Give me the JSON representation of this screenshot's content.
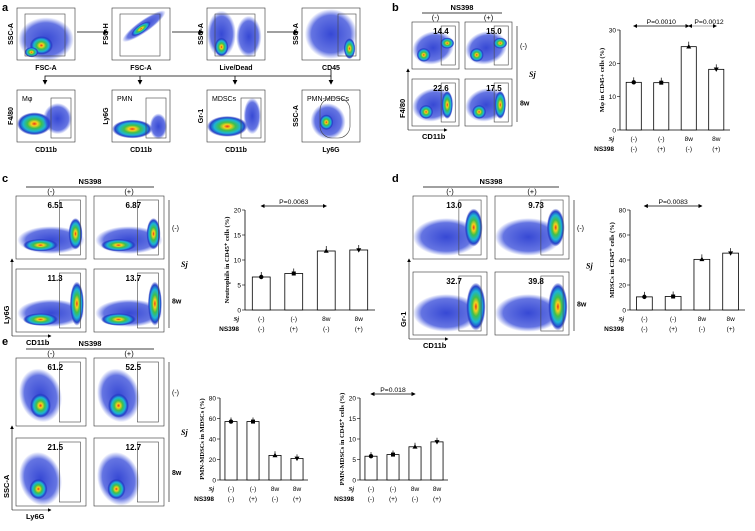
{
  "panel_labels": [
    "a",
    "b",
    "c",
    "d",
    "e"
  ],
  "panel_a": {
    "row1": [
      {
        "x": "FSC-A",
        "y": "SSC-A"
      },
      {
        "x": "FSC-A",
        "y": "FSC-H"
      },
      {
        "x": "Live/Dead",
        "y": "SSC-A"
      },
      {
        "x": "CD45",
        "y": "SSC-A"
      }
    ],
    "row2": [
      {
        "x": "CD11b",
        "y": "F4/80",
        "gate": "Mφ"
      },
      {
        "x": "CD11b",
        "y": "Ly6G",
        "gate": "PMN"
      },
      {
        "x": "CD11b",
        "y": "Gr-1",
        "gate": "MDSCs"
      },
      {
        "x": "Ly6G",
        "y": "SSC-A",
        "gate": "PMN-MDSCs"
      }
    ],
    "gate_color": "#e0561b"
  },
  "treatment": "NS398",
  "col_neg": "(-)",
  "col_pos": "(+)",
  "row_neg": "(-)",
  "row_8w": "8w",
  "group_label": "Sj",
  "table_rows": {
    "sj": "Sj",
    "ns": "NS398"
  },
  "table_cols": [
    {
      "sj": "(-)",
      "ns": "(-)"
    },
    {
      "sj": "(-)",
      "ns": "(+)"
    },
    {
      "sj": "8w",
      "ns": "(-)"
    },
    {
      "sj": "8w",
      "ns": "(+)"
    }
  ],
  "panel_b": {
    "percents": [
      "14.4",
      "15.0",
      "22.6",
      "17.5"
    ],
    "x": "CD11b",
    "y": "F4/80",
    "ylabel": "Mφ in CD45+ cells (%)",
    "pvalues": [
      "P=0.0010",
      "P=0.0012"
    ]
  },
  "panel_c": {
    "percents": [
      "6.51",
      "6.87",
      "11.3",
      "13.7"
    ],
    "x": "CD11b",
    "y": "Ly6G",
    "ylabel": "Neutrophils in CD45⁺ cells (%)",
    "pvalue": "P=0.0063"
  },
  "panel_d": {
    "percents": [
      "13.0",
      "9.73",
      "32.7",
      "39.8"
    ],
    "x": "CD11b",
    "y": "Gr-1",
    "ylabel": "MDSCs in CD45⁺ cells (%)",
    "pvalue": "P=0.0083"
  },
  "panel_e": {
    "percents": [
      "61.2",
      "52.5",
      "21.5",
      "12.7"
    ],
    "x": "Ly6G",
    "y": "SSC-A",
    "ylabel1": "PMN-MDSCs in MDSCs (%)",
    "ylabel2": "PMN-MDSCs in CD45⁺ cells (%)",
    "pvalue": "P=0.018"
  },
  "chart_data": [
    {
      "type": "bar",
      "title": "",
      "ylabel": "Mφ in CD45+ cells (%)",
      "categories": [
        "(-)/(-)",
        "(-)/(+)",
        "8w/(-)",
        "8w/(+)"
      ],
      "values": [
        14.3,
        14.2,
        25.0,
        18.2
      ],
      "ylim": [
        0,
        30
      ],
      "yticks": [
        0,
        10,
        20,
        30
      ],
      "markers": [
        "circle",
        "square",
        "triangle",
        "inverted-triangle"
      ],
      "annotations": [
        "P=0.0010",
        "P=0.0012"
      ]
    },
    {
      "type": "bar",
      "title": "",
      "ylabel": "Neutrophils in CD45⁺ cells (%)",
      "categories": [
        "(-)/(-)",
        "(-)/(+)",
        "8w/(-)",
        "8w/(+)"
      ],
      "values": [
        6.6,
        7.3,
        11.8,
        12.0
      ],
      "ylim": [
        0,
        20
      ],
      "yticks": [
        0,
        5,
        10,
        15,
        20
      ],
      "markers": [
        "circle",
        "square",
        "triangle",
        "inverted-triangle"
      ],
      "annotations": [
        "P=0.0063"
      ]
    },
    {
      "type": "bar",
      "title": "",
      "ylabel": "MDSCs in CD45⁺ cells (%)",
      "categories": [
        "(-)/(-)",
        "(-)/(+)",
        "8w/(-)",
        "8w/(+)"
      ],
      "values": [
        10.5,
        10.8,
        40.5,
        45.5
      ],
      "ylim": [
        0,
        80
      ],
      "yticks": [
        0,
        20,
        40,
        60,
        80
      ],
      "markers": [
        "circle",
        "square",
        "triangle",
        "inverted-triangle"
      ],
      "annotations": [
        "P=0.0083"
      ]
    },
    {
      "type": "bar",
      "title": "",
      "ylabel": "PMN-MDSCs in MDSCs (%)",
      "categories": [
        "(-)/(-)",
        "(-)/(+)",
        "8w/(-)",
        "8w/(+)"
      ],
      "values": [
        57,
        57,
        24,
        21
      ],
      "ylim": [
        0,
        80
      ],
      "yticks": [
        0,
        20,
        40,
        60,
        80
      ],
      "markers": [
        "circle",
        "square",
        "triangle",
        "inverted-triangle"
      ]
    },
    {
      "type": "bar",
      "title": "",
      "ylabel": "PMN-MDSCs in CD45⁺ cells (%)",
      "categories": [
        "(-)/(-)",
        "(-)/(+)",
        "8w/(-)",
        "8w/(+)"
      ],
      "values": [
        5.8,
        6.2,
        8.1,
        9.3
      ],
      "ylim": [
        0,
        20
      ],
      "yticks": [
        0,
        5,
        10,
        15,
        20
      ],
      "markers": [
        "circle",
        "square",
        "triangle",
        "inverted-triangle"
      ],
      "annotations": [
        "P=0.018"
      ]
    }
  ]
}
